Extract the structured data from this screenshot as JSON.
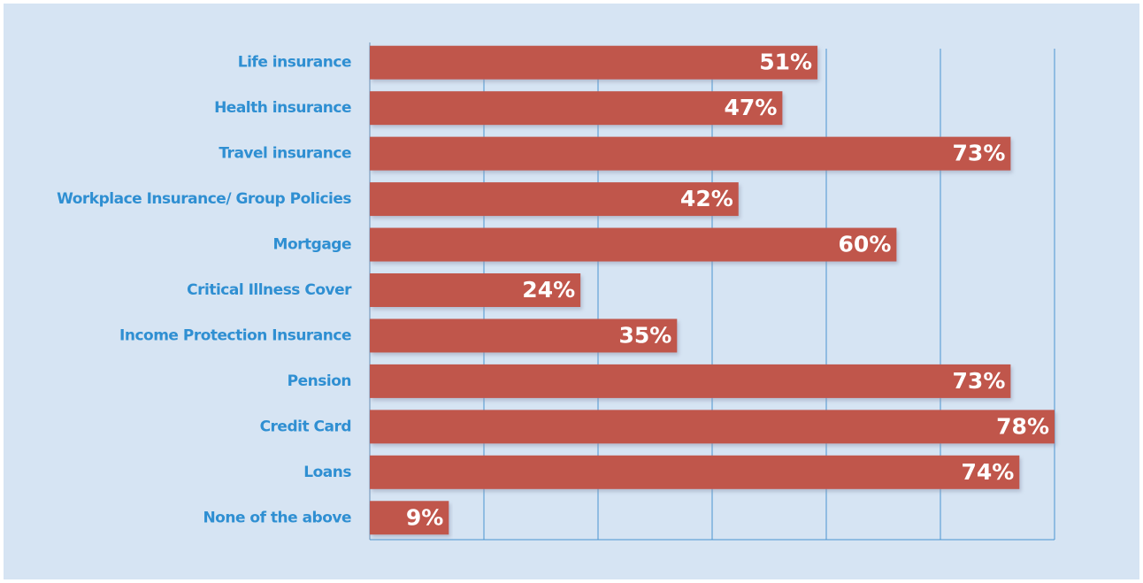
{
  "chart_data": {
    "type": "barh",
    "categories": [
      "Life insurance",
      "Health insurance",
      "Travel insurance",
      "Workplace Insurance/ Group Policies",
      "Mortgage",
      "Critical Illness Cover",
      "Income Protection Insurance",
      "Pension",
      "Credit Card",
      "Loans",
      "None of the above"
    ],
    "values": [
      51,
      47,
      73,
      42,
      60,
      24,
      35,
      73,
      78,
      74,
      9
    ],
    "value_labels": [
      "51%",
      "47%",
      "73%",
      "42%",
      "60%",
      "24%",
      "35%",
      "73%",
      "78%",
      "74%",
      "9%"
    ],
    "color": "#c0574c",
    "xlim": [
      0,
      78
    ],
    "xticks": [
      0,
      13,
      26,
      39,
      52,
      65,
      78
    ],
    "grid": true
  }
}
